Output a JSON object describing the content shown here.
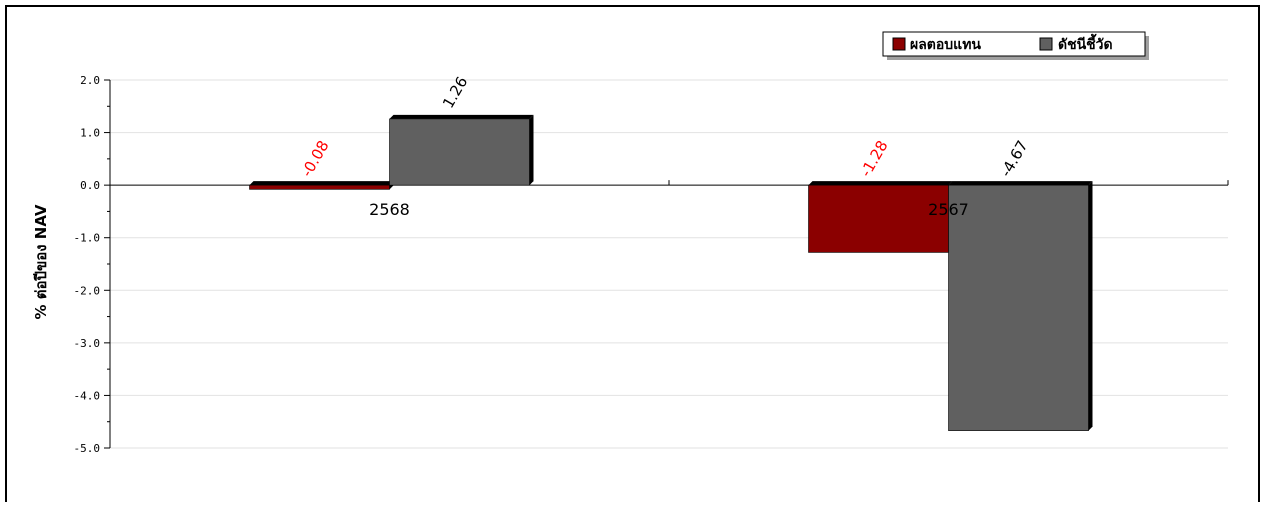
{
  "chart_data": {
    "type": "bar",
    "categories": [
      "2568",
      "2567"
    ],
    "series": [
      {
        "name": "ผลตอบแทน",
        "values": [
          -0.08,
          -1.28
        ],
        "color": "#8b0000",
        "label_color": "#ff0000"
      },
      {
        "name": "ดัชนีชี้วัด",
        "values": [
          1.26,
          -4.67
        ],
        "color": "#606060",
        "label_color": "#000000"
      }
    ],
    "value_labels": [
      [
        "-0.08",
        "-1.28"
      ],
      [
        "1.26",
        "-4.67"
      ]
    ],
    "title": "",
    "xlabel": "",
    "ylabel": "% ต่อปีของ NAV",
    "ylim": [
      -5.0,
      2.0
    ],
    "yticks": [
      "2.0",
      "1.0",
      "0.0",
      "-1.0",
      "-2.0",
      "-3.0",
      "-4.0",
      "-5.0"
    ],
    "ytick_values": [
      2.0,
      1.0,
      0.0,
      -1.0,
      -2.0,
      -3.0,
      -4.0,
      -5.0
    ],
    "grid": true,
    "legend_position": "top-right"
  }
}
